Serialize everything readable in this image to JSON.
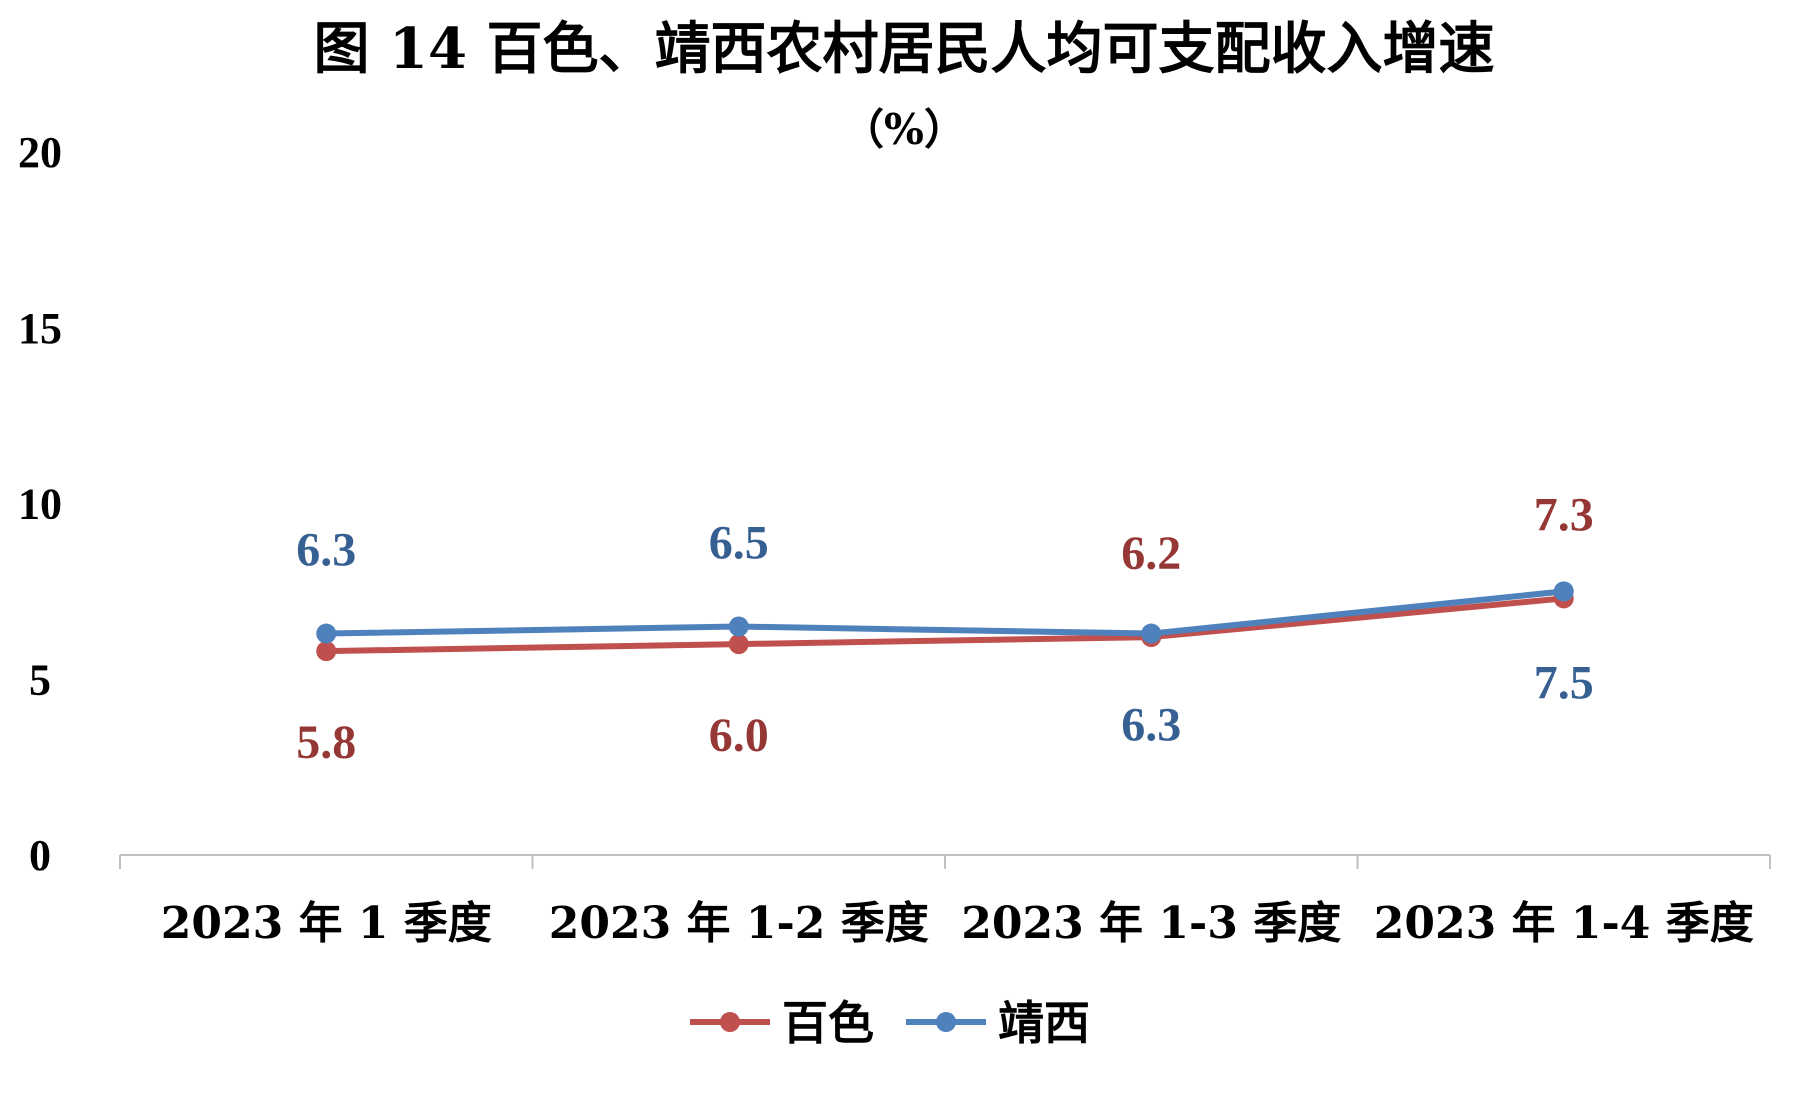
{
  "chart_data": {
    "type": "line",
    "title": "图 14  百色、靖西农村居民人均可支配收入增速",
    "subtitle": "（%）",
    "categories": [
      "2023 年 1 季度",
      "2023 年 1-2 季度",
      "2023 年 1-3 季度",
      "2023 年 1-4 季度"
    ],
    "series": [
      {
        "name": "百色",
        "color": "#C0504D",
        "values": [
          5.8,
          6.0,
          6.2,
          7.3
        ]
      },
      {
        "name": "靖西",
        "color": "#4F81BD",
        "values": [
          6.3,
          6.5,
          6.3,
          7.5
        ]
      }
    ],
    "label_colors": {
      "百色": "#953735",
      "靖西": "#376092"
    },
    "yticks": [
      0,
      5,
      10,
      15,
      20
    ],
    "ylim": [
      0,
      20
    ],
    "grid": false,
    "legend_position": "bottom",
    "xlabel": "",
    "ylabel": ""
  }
}
